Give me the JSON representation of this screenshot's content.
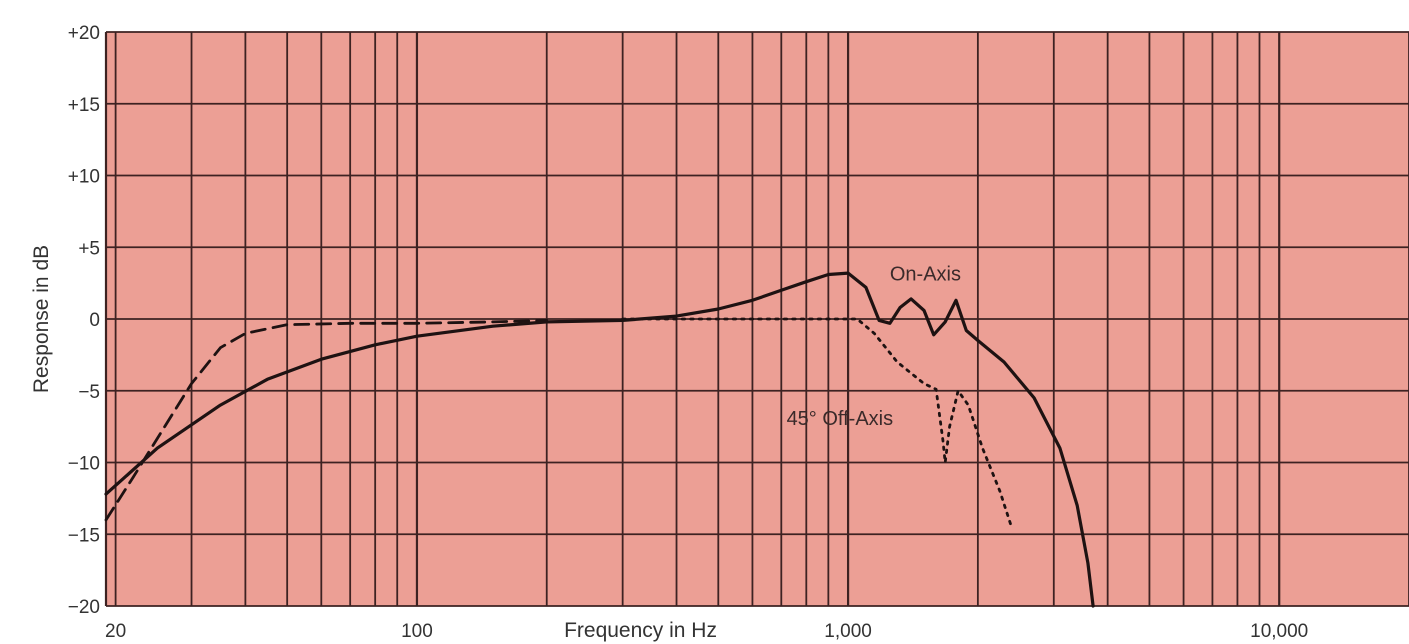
{
  "chart_data": {
    "type": "line",
    "title": "",
    "xlabel": "Frequency in Hz",
    "ylabel": "Response in dB",
    "x_scale": "log",
    "xlim": [
      19,
      20000
    ],
    "ylim": [
      -20,
      20
    ],
    "x_ticks": [
      {
        "value": 20,
        "label": "20"
      },
      {
        "value": 100,
        "label": "100"
      },
      {
        "value": 1000,
        "label": "1,000"
      },
      {
        "value": 10000,
        "label": "10,000"
      }
    ],
    "y_ticks": [
      {
        "value": 20,
        "label": "+20"
      },
      {
        "value": 15,
        "label": "+15"
      },
      {
        "value": 10,
        "label": "+10"
      },
      {
        "value": 5,
        "label": "+5"
      },
      {
        "value": 0,
        "label": "0"
      },
      {
        "value": -5,
        "label": "−5"
      },
      {
        "value": -10,
        "label": "−10"
      },
      {
        "value": -15,
        "label": "−15"
      },
      {
        "value": -20,
        "label": "−20"
      }
    ],
    "grid": true,
    "colors": {
      "background": "#ec9f95",
      "grid": "#3d2222",
      "line": "#1e1212"
    },
    "series": [
      {
        "key": "on-axis",
        "style": "solid",
        "points": [
          [
            19,
            -12.2
          ],
          [
            25,
            -9
          ],
          [
            35,
            -6
          ],
          [
            45,
            -4.2
          ],
          [
            60,
            -2.8
          ],
          [
            80,
            -1.8
          ],
          [
            100,
            -1.2
          ],
          [
            150,
            -0.5
          ],
          [
            200,
            -0.2
          ],
          [
            300,
            -0.1
          ],
          [
            400,
            0.2
          ],
          [
            500,
            0.7
          ],
          [
            600,
            1.3
          ],
          [
            700,
            2
          ],
          [
            800,
            2.6
          ],
          [
            900,
            3.1
          ],
          [
            1000,
            3.2
          ],
          [
            1100,
            2.2
          ],
          [
            1180,
            -0.1
          ],
          [
            1250,
            -0.3
          ],
          [
            1320,
            0.8
          ],
          [
            1400,
            1.4
          ],
          [
            1500,
            0.6
          ],
          [
            1580,
            -1.1
          ],
          [
            1680,
            -0.2
          ],
          [
            1780,
            1.3
          ],
          [
            1880,
            -0.8
          ],
          [
            2000,
            -1.5
          ],
          [
            2300,
            -3
          ],
          [
            2700,
            -5.5
          ],
          [
            3100,
            -9
          ],
          [
            3400,
            -13
          ],
          [
            3600,
            -17
          ],
          [
            3700,
            -20
          ]
        ]
      },
      {
        "key": "off-axis-dashed",
        "style": "dashed",
        "points": [
          [
            19,
            -14
          ],
          [
            22,
            -11
          ],
          [
            26,
            -7.5
          ],
          [
            30,
            -4.5
          ],
          [
            35,
            -2
          ],
          [
            40,
            -1
          ],
          [
            50,
            -0.4
          ],
          [
            70,
            -0.3
          ],
          [
            100,
            -0.3
          ],
          [
            150,
            -0.2
          ],
          [
            200,
            -0.1
          ]
        ]
      },
      {
        "key": "off-axis-45",
        "style": "dotted",
        "points": [
          [
            300,
            0
          ],
          [
            500,
            0
          ],
          [
            800,
            0
          ],
          [
            1050,
            0
          ],
          [
            1150,
            -1
          ],
          [
            1300,
            -3
          ],
          [
            1500,
            -4.5
          ],
          [
            1600,
            -4.9
          ],
          [
            1660,
            -8.5
          ],
          [
            1680,
            -10
          ],
          [
            1720,
            -7.5
          ],
          [
            1800,
            -5
          ],
          [
            1900,
            -6
          ],
          [
            2050,
            -9
          ],
          [
            2250,
            -12
          ],
          [
            2400,
            -14.6
          ]
        ]
      }
    ],
    "annotations": [
      {
        "text": "On-Axis",
        "x": 1250,
        "y": 2.7
      },
      {
        "text": "45° Off-Axis",
        "x": 720,
        "y": -7.4
      }
    ]
  }
}
